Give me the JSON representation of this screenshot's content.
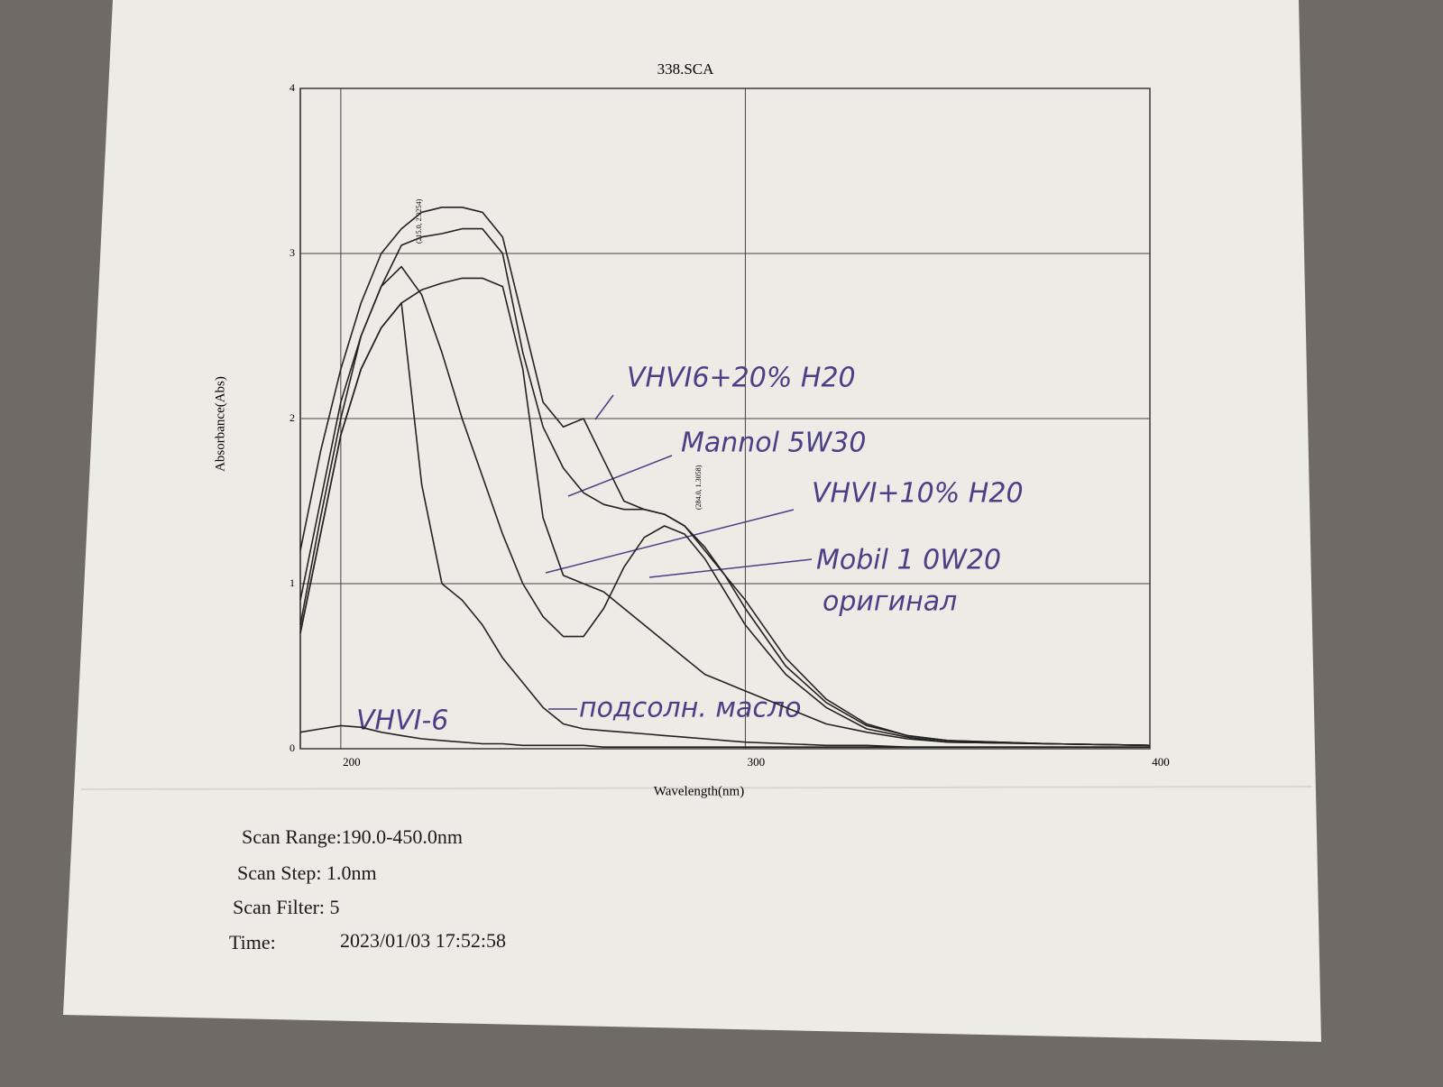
{
  "chart_data": {
    "type": "line",
    "title": "338.SCA",
    "x_label": "Wavelength(nm)",
    "y_label": "Absorbance(Abs)",
    "xlim": [
      190,
      400
    ],
    "ylim": [
      0,
      4
    ],
    "xticks": [
      200,
      300,
      400
    ],
    "yticks": [
      0,
      1,
      2,
      3,
      4
    ],
    "grid": true,
    "x": [
      190,
      195,
      200,
      205,
      210,
      215,
      220,
      225,
      230,
      235,
      240,
      245,
      250,
      255,
      260,
      265,
      270,
      275,
      280,
      285,
      290,
      295,
      300,
      310,
      320,
      330,
      340,
      350,
      375,
      400
    ],
    "series": [
      {
        "name": "VHVI6+20% H20",
        "color": "#222222",
        "values": [
          1.2,
          1.8,
          2.3,
          2.7,
          3.0,
          3.15,
          3.25,
          3.28,
          3.28,
          3.25,
          3.1,
          2.6,
          2.1,
          1.95,
          2.0,
          1.75,
          1.5,
          1.45,
          1.42,
          1.35,
          1.2,
          1.05,
          0.9,
          0.55,
          0.3,
          0.15,
          0.08,
          0.05,
          0.03,
          0.02
        ]
      },
      {
        "name": "Mannol 5W30",
        "color": "#222222",
        "values": [
          0.9,
          1.5,
          2.1,
          2.5,
          2.8,
          3.05,
          3.1,
          3.12,
          3.15,
          3.15,
          3.0,
          2.4,
          1.95,
          1.7,
          1.55,
          1.48,
          1.45,
          1.45,
          1.42,
          1.35,
          1.22,
          1.05,
          0.85,
          0.5,
          0.28,
          0.14,
          0.08,
          0.05,
          0.03,
          0.02
        ]
      },
      {
        "name": "VHVI+10% H20",
        "color": "#222222",
        "values": [
          0.7,
          1.3,
          1.9,
          2.3,
          2.55,
          2.7,
          2.78,
          2.82,
          2.85,
          2.85,
          2.8,
          2.3,
          1.4,
          1.05,
          1.0,
          0.95,
          0.85,
          0.75,
          0.65,
          0.55,
          0.45,
          0.4,
          0.35,
          0.25,
          0.15,
          0.1,
          0.06,
          0.04,
          0.03,
          0.02
        ]
      },
      {
        "name": "Mobil 1 0W20",
        "color": "#222222",
        "values": [
          0.75,
          1.4,
          2.0,
          2.5,
          2.8,
          2.92,
          2.75,
          2.4,
          2.0,
          1.65,
          1.3,
          1.0,
          0.8,
          0.68,
          0.68,
          0.85,
          1.1,
          1.28,
          1.35,
          1.3,
          1.15,
          0.95,
          0.75,
          0.45,
          0.25,
          0.12,
          0.07,
          0.04,
          0.03,
          0.02
        ]
      },
      {
        "name": "подсолн. масло",
        "color": "#222222",
        "values": [
          0.7,
          1.3,
          1.9,
          2.3,
          2.55,
          2.7,
          1.6,
          1.0,
          0.9,
          0.75,
          0.55,
          0.4,
          0.25,
          0.15,
          0.12,
          0.11,
          0.1,
          0.09,
          0.08,
          0.07,
          0.06,
          0.05,
          0.04,
          0.03,
          0.02,
          0.02,
          0.01,
          0.01,
          0.01,
          0.01
        ]
      },
      {
        "name": "VHVI-6",
        "color": "#222222",
        "values": [
          0.1,
          0.12,
          0.14,
          0.13,
          0.1,
          0.08,
          0.06,
          0.05,
          0.04,
          0.03,
          0.03,
          0.02,
          0.02,
          0.02,
          0.02,
          0.01,
          0.01,
          0.01,
          0.01,
          0.01,
          0.01,
          0.01,
          0.01,
          0.01,
          0.01,
          0.01,
          0.01,
          0.01,
          0.01,
          0.01
        ]
      }
    ],
    "annotations": [
      {
        "text": "оригинал"
      },
      {
        "text": "(215.0, 2.9254)"
      },
      {
        "text": "(284.0, 1.3058)"
      }
    ]
  },
  "scan_info": {
    "range": "Scan Range:190.0-450.0nm",
    "step": "Scan Step:  1.0nm",
    "filter": "Scan Filter: 5",
    "time_label": "Time:",
    "time": "2023/01/03 17:52:58"
  }
}
